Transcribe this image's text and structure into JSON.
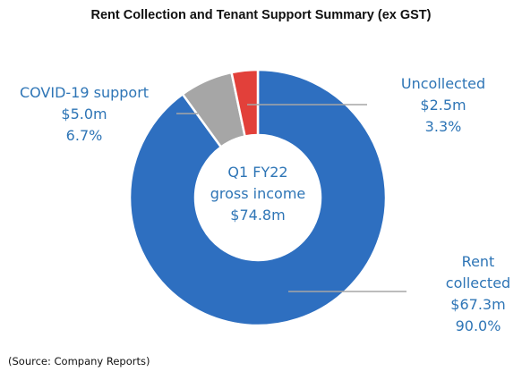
{
  "chart_data": {
    "type": "pie",
    "title": "Rent Collection and Tenant Support Summary (ex GST)",
    "center_label": [
      "Q1 FY22",
      "gross income",
      "$74.8m"
    ],
    "source_note": "(Source: Company Reports)",
    "slices": [
      {
        "key": "rent",
        "label_lines": [
          "Rent",
          "collected"
        ],
        "amount": "$67.3m",
        "percent_label": "90.0%",
        "value": 90.0,
        "color": "#2e6fc0"
      },
      {
        "key": "covid",
        "label_lines": [
          "COVID-19 support"
        ],
        "amount": "$5.0m",
        "percent_label": "6.7%",
        "value": 6.7,
        "color": "#a6a6a6"
      },
      {
        "key": "uncollected",
        "label_lines": [
          "Uncollected"
        ],
        "amount": "$2.5m",
        "percent_label": "3.3%",
        "value": 3.3,
        "color": "#e2403a"
      }
    ],
    "colors": {
      "label_text": "#2e75b6",
      "center_text": "#2e75b6",
      "leader_line": "#a6a6a6",
      "slice_border": "#ffffff"
    }
  }
}
